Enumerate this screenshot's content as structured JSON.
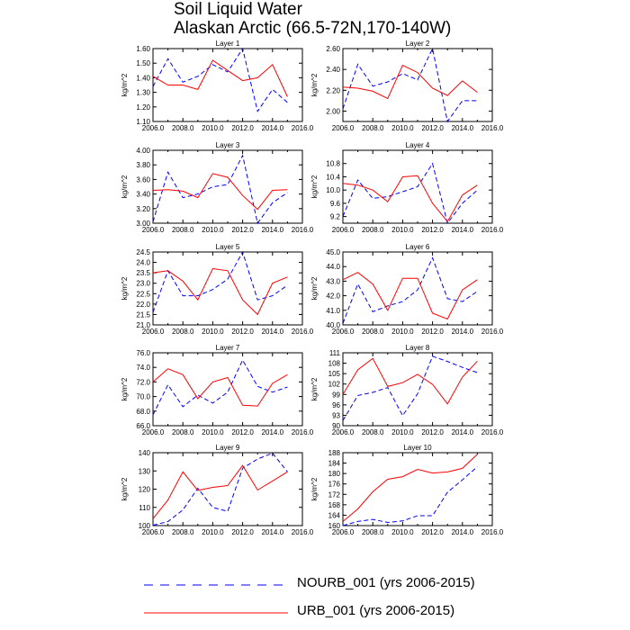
{
  "figure": {
    "title_line1": "Soil Liquid Water",
    "title_line2": "Alaskan Arctic (66.5-72N,170-140W)"
  },
  "legend": {
    "nourb": {
      "label": "NOURB_001 (yrs 2006-2015)",
      "color": "#0000ff",
      "style": "dashed"
    },
    "urb": {
      "label": "URB_001 (yrs 2006-2015)",
      "color": "#ff0000",
      "style": "solid"
    }
  },
  "chart_data": [
    {
      "type": "line",
      "title": "Layer 1",
      "ylabel": "kg/m^2",
      "xlim": [
        2006,
        2016
      ],
      "ylim": [
        1.1,
        1.6
      ],
      "xticks": [
        "2006.0",
        "2008.0",
        "2010.0",
        "2012.0",
        "2014.0",
        "2016.0"
      ],
      "yticks": [
        "1.10",
        "1.20",
        "1.30",
        "1.40",
        "1.50",
        "1.60"
      ],
      "x": [
        2006,
        2007,
        2008,
        2009,
        2010,
        2011,
        2012,
        2013,
        2014,
        2015
      ],
      "series": [
        {
          "name": "NOURB_001",
          "values": [
            1.34,
            1.53,
            1.37,
            1.41,
            1.49,
            1.44,
            1.6,
            1.17,
            1.32,
            1.23
          ]
        },
        {
          "name": "URB_001",
          "values": [
            1.41,
            1.35,
            1.35,
            1.32,
            1.52,
            1.45,
            1.38,
            1.4,
            1.49,
            1.27
          ]
        }
      ]
    },
    {
      "type": "line",
      "title": "Layer 2",
      "ylabel": "kg/m^2",
      "xlim": [
        2006,
        2016
      ],
      "ylim": [
        1.9,
        2.6
      ],
      "xticks": [
        "2006.0",
        "2008.0",
        "2010.0",
        "2012.0",
        "2014.0",
        "2016.0"
      ],
      "yticks": [
        "2.00",
        "2.20",
        "2.40",
        "2.60"
      ],
      "x": [
        2006,
        2007,
        2008,
        2009,
        2010,
        2011,
        2012,
        2013,
        2014,
        2015
      ],
      "series": [
        {
          "name": "NOURB_001",
          "values": [
            2.02,
            2.45,
            2.24,
            2.28,
            2.36,
            2.3,
            2.6,
            1.9,
            2.1,
            2.1
          ]
        },
        {
          "name": "URB_001",
          "values": [
            2.23,
            2.22,
            2.19,
            2.12,
            2.44,
            2.37,
            2.22,
            2.15,
            2.29,
            2.18
          ]
        }
      ]
    },
    {
      "type": "line",
      "title": "Layer 3",
      "ylabel": "kg/m^2",
      "xlim": [
        2006,
        2016
      ],
      "ylim": [
        3.0,
        4.0
      ],
      "xticks": [
        "2006.0",
        "2008.0",
        "2010.0",
        "2012.0",
        "2014.0",
        "2016.0"
      ],
      "yticks": [
        "3.00",
        "3.20",
        "3.40",
        "3.60",
        "3.80",
        "4.00"
      ],
      "x": [
        2006,
        2007,
        2008,
        2009,
        2010,
        2011,
        2012,
        2013,
        2014,
        2015
      ],
      "series": [
        {
          "name": "NOURB_001",
          "values": [
            3.02,
            3.7,
            3.35,
            3.4,
            3.5,
            3.53,
            3.93,
            3.0,
            3.28,
            3.42
          ]
        },
        {
          "name": "URB_001",
          "values": [
            3.45,
            3.46,
            3.44,
            3.35,
            3.68,
            3.63,
            3.38,
            3.19,
            3.45,
            3.46
          ]
        }
      ]
    },
    {
      "type": "line",
      "title": "Layer 4",
      "ylabel": "kg/m^2",
      "xlim": [
        2006,
        2016
      ],
      "ylim": [
        9.0,
        11.2
      ],
      "xticks": [
        "2006.0",
        "2008.0",
        "2010.0",
        "2012.0",
        "2014.0",
        "2016.0"
      ],
      "yticks": [
        "9.2",
        "9.6",
        "10.0",
        "10.4",
        "10.8"
      ],
      "x": [
        2006,
        2007,
        2008,
        2009,
        2010,
        2011,
        2012,
        2013,
        2014,
        2015
      ],
      "series": [
        {
          "name": "NOURB_001",
          "values": [
            9.2,
            10.3,
            9.75,
            9.8,
            9.95,
            10.1,
            10.8,
            9.0,
            9.6,
            10.0
          ]
        },
        {
          "name": "URB_001",
          "values": [
            10.2,
            10.15,
            10.0,
            9.65,
            10.4,
            10.43,
            9.6,
            9.05,
            9.85,
            10.15
          ]
        }
      ]
    },
    {
      "type": "line",
      "title": "Layer 5",
      "ylabel": "kg/m^2",
      "xlim": [
        2006,
        2016
      ],
      "ylim": [
        21.0,
        24.5
      ],
      "xticks": [
        "2006.0",
        "2008.0",
        "2010.0",
        "2012.0",
        "2014.0",
        "2016.0"
      ],
      "yticks": [
        "21.0",
        "21.5",
        "22.0",
        "22.5",
        "23.0",
        "23.5",
        "24.0",
        "24.5"
      ],
      "x": [
        2006,
        2007,
        2008,
        2009,
        2010,
        2011,
        2012,
        2013,
        2014,
        2015
      ],
      "series": [
        {
          "name": "NOURB_001",
          "values": [
            21.6,
            23.6,
            22.4,
            22.4,
            22.7,
            23.2,
            24.5,
            22.2,
            22.4,
            22.9
          ]
        },
        {
          "name": "URB_001",
          "values": [
            23.5,
            23.6,
            23.1,
            22.2,
            23.7,
            23.6,
            22.2,
            21.5,
            23.0,
            23.3
          ]
        }
      ]
    },
    {
      "type": "line",
      "title": "Layer 6",
      "ylabel": "kg/m^2",
      "xlim": [
        2006,
        2016
      ],
      "ylim": [
        40.0,
        45.0
      ],
      "xticks": [
        "2006.0",
        "2008.0",
        "2010.0",
        "2012.0",
        "2014.0",
        "2016.0"
      ],
      "yticks": [
        "40.0",
        "41.0",
        "42.0",
        "43.0",
        "44.0",
        "45.0"
      ],
      "x": [
        2006,
        2007,
        2008,
        2009,
        2010,
        2011,
        2012,
        2013,
        2014,
        2015
      ],
      "series": [
        {
          "name": "NOURB_001",
          "values": [
            40.1,
            42.8,
            40.9,
            41.3,
            41.6,
            42.4,
            44.6,
            41.8,
            41.6,
            42.3
          ]
        },
        {
          "name": "URB_001",
          "values": [
            43.1,
            43.6,
            42.8,
            41.0,
            43.2,
            43.2,
            40.8,
            40.4,
            42.4,
            43.1
          ]
        }
      ]
    },
    {
      "type": "line",
      "title": "Layer 7",
      "ylabel": "kg/m^2",
      "xlim": [
        2006,
        2016
      ],
      "ylim": [
        66.0,
        76.0
      ],
      "xticks": [
        "2006.0",
        "2008.0",
        "2010.0",
        "2012.0",
        "2014.0",
        "2016.0"
      ],
      "yticks": [
        "66.0",
        "68.0",
        "70.0",
        "72.0",
        "74.0",
        "76.0"
      ],
      "x": [
        2006,
        2007,
        2008,
        2009,
        2010,
        2011,
        2012,
        2013,
        2014,
        2015
      ],
      "series": [
        {
          "name": "NOURB_001",
          "values": [
            67.5,
            71.6,
            68.6,
            70.2,
            69.1,
            70.6,
            75.0,
            71.4,
            70.6,
            71.3
          ]
        },
        {
          "name": "URB_001",
          "values": [
            72.0,
            73.8,
            73.0,
            69.7,
            72.0,
            72.6,
            68.8,
            68.7,
            71.8,
            73.0
          ]
        }
      ]
    },
    {
      "type": "line",
      "title": "Layer 8",
      "ylabel": "kg/m^2",
      "xlim": [
        2006,
        2016
      ],
      "ylim": [
        90,
        111
      ],
      "xticks": [
        "2006.0",
        "2008.0",
        "2010.0",
        "2012.0",
        "2014.0",
        "2016.0"
      ],
      "yticks": [
        "90",
        "93",
        "96",
        "99",
        "102",
        "105",
        "108",
        "111"
      ],
      "x": [
        2006,
        2007,
        2008,
        2009,
        2010,
        2011,
        2012,
        2013,
        2014,
        2015
      ],
      "series": [
        {
          "name": "NOURB_001",
          "values": [
            91.5,
            98.7,
            99.6,
            101.0,
            92.9,
            99.2,
            110.0,
            108.5,
            106.8,
            105.3
          ]
        },
        {
          "name": "URB_001",
          "values": [
            99.0,
            106.1,
            109.4,
            101.3,
            102.4,
            104.8,
            101.9,
            96.3,
            104.0,
            108.6
          ]
        }
      ]
    },
    {
      "type": "line",
      "title": "Layer 9",
      "ylabel": "kg/m^2",
      "xlim": [
        2006,
        2016
      ],
      "ylim": [
        100,
        140
      ],
      "xticks": [
        "2006.0",
        "2008.0",
        "2010.0",
        "2012.0",
        "2014.0",
        "2016.0"
      ],
      "yticks": [
        "100",
        "110",
        "120",
        "130",
        "140"
      ],
      "x": [
        2006,
        2007,
        2008,
        2009,
        2010,
        2011,
        2012,
        2013,
        2014,
        2015
      ],
      "series": [
        {
          "name": "NOURB_001",
          "values": [
            100.2,
            102.2,
            108.6,
            120.5,
            110.0,
            107.8,
            131.5,
            136.5,
            139.8,
            129.5
          ]
        },
        {
          "name": "URB_001",
          "values": [
            103.8,
            114.0,
            129.5,
            119.3,
            121.0,
            122.0,
            133.0,
            119.5,
            124.5,
            129.5
          ]
        }
      ]
    },
    {
      "type": "line",
      "title": "Layer 10",
      "ylabel": "kg/m^2",
      "xlim": [
        2006,
        2016
      ],
      "ylim": [
        160,
        188
      ],
      "xticks": [
        "2006.0",
        "2008.0",
        "2010.0",
        "2012.0",
        "2014.0",
        "2016.0"
      ],
      "yticks": [
        "160",
        "164",
        "168",
        "172",
        "176",
        "180",
        "184",
        "188"
      ],
      "x": [
        2006,
        2007,
        2008,
        2009,
        2010,
        2011,
        2012,
        2013,
        2014,
        2015
      ],
      "series": [
        {
          "name": "NOURB_001",
          "values": [
            160.0,
            161.6,
            162.4,
            161.2,
            161.8,
            163.8,
            163.8,
            172.8,
            177.6,
            182.6
          ]
        },
        {
          "name": "URB_001",
          "values": [
            161.6,
            166.4,
            173.0,
            177.8,
            178.8,
            181.6,
            180.2,
            180.6,
            182.0,
            187.4
          ]
        }
      ]
    }
  ]
}
